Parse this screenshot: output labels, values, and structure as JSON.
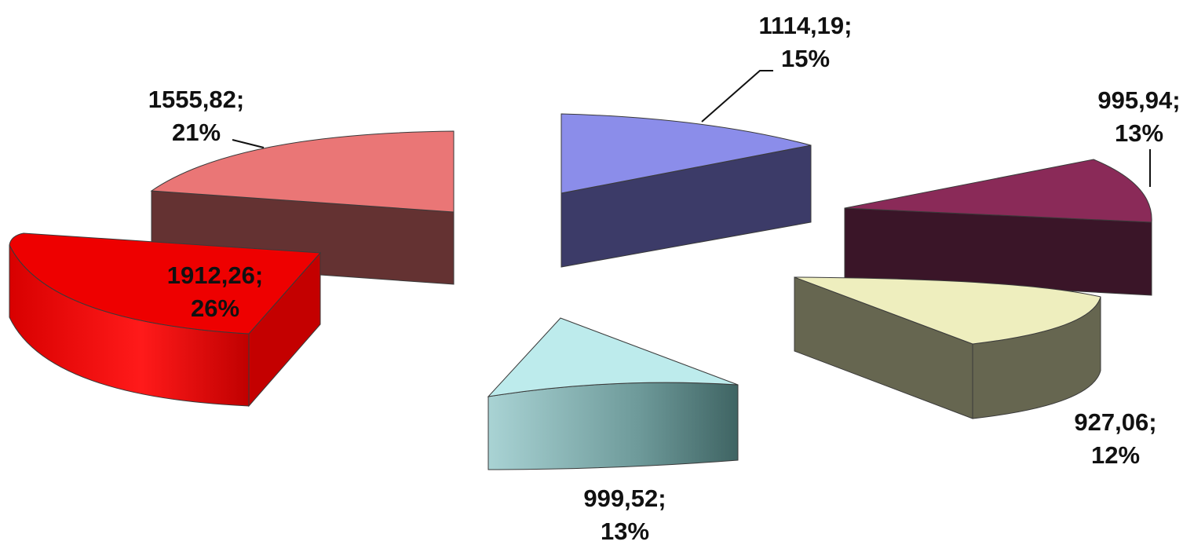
{
  "chart_data": {
    "type": "pie",
    "style": "3d-exploded",
    "title": "",
    "slices": [
      {
        "value": 1114.19,
        "value_label": "1114,19;",
        "percent": 15,
        "percent_label": "15%",
        "top": "#8b8dea",
        "side": "#3c3b68"
      },
      {
        "value": 995.94,
        "value_label": "995,94;",
        "percent": 13,
        "percent_label": "13%",
        "top": "#8a2a58",
        "side": "#3a1528"
      },
      {
        "value": 927.06,
        "value_label": "927,06;",
        "percent": 12,
        "percent_label": "12%",
        "top": "#eeeebe",
        "side": "#666650"
      },
      {
        "value": 999.52,
        "value_label": "999,52;",
        "percent": 13,
        "percent_label": "13%",
        "top": "#bdebec",
        "side": "#8ab4b5"
      },
      {
        "value": 1912.26,
        "value_label": "1912,26;",
        "percent": 26,
        "percent_label": "26%",
        "top": "#ee0000",
        "side": "#c40000"
      },
      {
        "value": 1555.82,
        "value_label": "1555,82;",
        "percent": 21,
        "percent_label": "21%",
        "top": "#ea7676",
        "side": "#643232"
      }
    ]
  }
}
